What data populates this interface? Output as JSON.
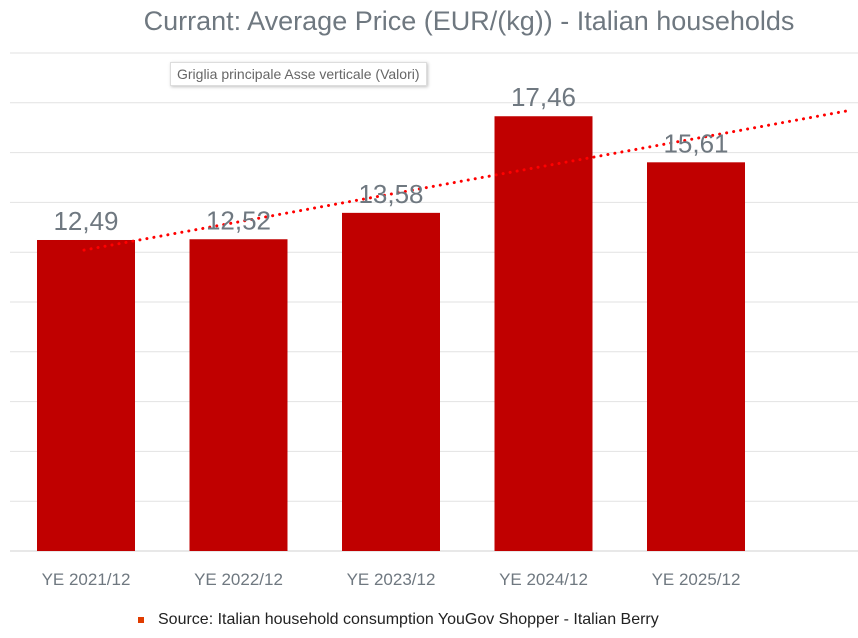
{
  "chart_data": {
    "type": "bar",
    "title": "Currant: Average Price (EUR/(kg)) - Italian households",
    "categories": [
      "YE 2021/12",
      "YE 2022/12",
      "YE 2023/12",
      "YE 2024/12",
      "YE 2025/12"
    ],
    "values": [
      12.49,
      12.52,
      13.58,
      17.46,
      15.61
    ],
    "value_labels": [
      "12,49",
      "12,52",
      "13,58",
      "17,46",
      "15,61"
    ],
    "ylim": [
      0,
      20
    ],
    "grid_step": 2,
    "grid": true,
    "trendline": {
      "type": "linear",
      "style": "dotted",
      "color": "#ff0000"
    },
    "bar_color": "#c00000",
    "legend": {
      "position": "bottom",
      "entries": [
        "Source: Italian household consumption YouGov Shopper - Italian Berry"
      ],
      "marker_color": "#e03c00"
    },
    "xlabel": "",
    "ylabel": ""
  },
  "tooltip": "Griglia principale Asse verticale (Valori)"
}
